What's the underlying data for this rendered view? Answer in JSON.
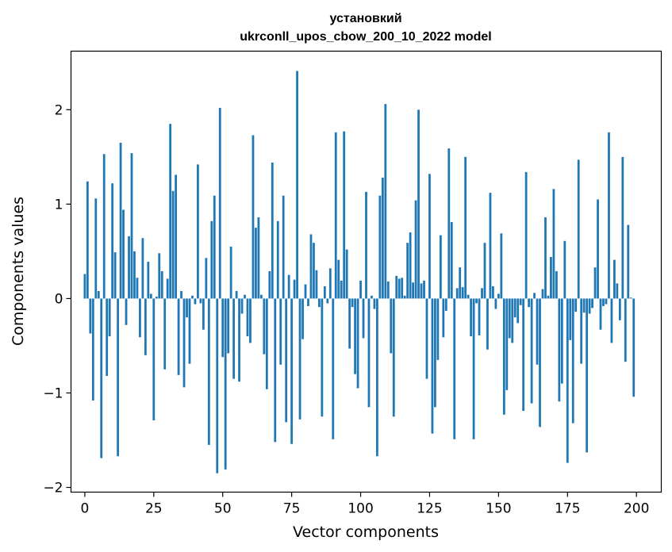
{
  "chart_data": {
    "type": "bar",
    "title": "установкий\nukrconll_upos_cbow_200_10_2022 model",
    "title_lines": [
      "установкий",
      "ukrconll_upos_cbow_200_10_2022 model"
    ],
    "xlabel": "Vector components",
    "ylabel": "Components values",
    "xlim": [
      -5,
      209
    ],
    "ylim": [
      -2.05,
      2.62
    ],
    "xticks": [
      0,
      25,
      50,
      75,
      100,
      125,
      150,
      175,
      200
    ],
    "xtick_labels": [
      "0",
      "25",
      "50",
      "75",
      "100",
      "125",
      "150",
      "175",
      "200"
    ],
    "yticks": [
      -2,
      -1,
      0,
      1,
      2
    ],
    "ytick_labels": [
      "−2",
      "−1",
      "0",
      "1",
      "2"
    ],
    "grid": false,
    "bar_color": "#1f77b4",
    "x": [
      0,
      1,
      2,
      3,
      4,
      5,
      6,
      7,
      8,
      9,
      10,
      11,
      12,
      13,
      14,
      15,
      16,
      17,
      18,
      19,
      20,
      21,
      22,
      23,
      24,
      25,
      26,
      27,
      28,
      29,
      30,
      31,
      32,
      33,
      34,
      35,
      36,
      37,
      38,
      39,
      40,
      41,
      42,
      43,
      44,
      45,
      46,
      47,
      48,
      49,
      50,
      51,
      52,
      53,
      54,
      55,
      56,
      57,
      58,
      59,
      60,
      61,
      62,
      63,
      64,
      65,
      66,
      67,
      68,
      69,
      70,
      71,
      72,
      73,
      74,
      75,
      76,
      77,
      78,
      79,
      80,
      81,
      82,
      83,
      84,
      85,
      86,
      87,
      88,
      89,
      90,
      91,
      92,
      93,
      94,
      95,
      96,
      97,
      98,
      99,
      100,
      101,
      102,
      103,
      104,
      105,
      106,
      107,
      108,
      109,
      110,
      111,
      112,
      113,
      114,
      115,
      116,
      117,
      118,
      119,
      120,
      121,
      122,
      123,
      124,
      125,
      126,
      127,
      128,
      129,
      130,
      131,
      132,
      133,
      134,
      135,
      136,
      137,
      138,
      139,
      140,
      141,
      142,
      143,
      144,
      145,
      146,
      147,
      148,
      149,
      150,
      151,
      152,
      153,
      154,
      155,
      156,
      157,
      158,
      159,
      160,
      161,
      162,
      163,
      164,
      165,
      166,
      167,
      168,
      169,
      170,
      171,
      172,
      173,
      174,
      175,
      176,
      177,
      178,
      179,
      180,
      181,
      182,
      183,
      184,
      185,
      186,
      187,
      188,
      189,
      190,
      191,
      192,
      193,
      194,
      195,
      196,
      197,
      198,
      199
    ],
    "values": [
      0.26,
      1.24,
      -0.37,
      -1.08,
      1.06,
      0.08,
      -1.69,
      1.53,
      -0.82,
      -0.4,
      1.22,
      0.49,
      -1.67,
      1.65,
      0.94,
      -0.28,
      0.66,
      1.54,
      0.5,
      0.22,
      -0.41,
      0.64,
      -0.6,
      0.39,
      0.05,
      -1.29,
      0.02,
      0.48,
      0.29,
      -0.75,
      0.21,
      1.85,
      1.14,
      1.31,
      -0.81,
      0.08,
      -0.94,
      -0.2,
      -0.69,
      0.03,
      -0.06,
      1.42,
      -0.05,
      -0.33,
      0.43,
      -1.55,
      0.82,
      1.09,
      -1.85,
      2.02,
      -0.62,
      -1.81,
      -0.58,
      0.55,
      -0.85,
      0.08,
      -0.88,
      -0.16,
      0.04,
      -0.4,
      -0.47,
      1.73,
      0.75,
      0.86,
      0.04,
      -0.59,
      -0.96,
      0.29,
      1.44,
      -1.52,
      0.82,
      -0.7,
      1.09,
      -1.31,
      0.25,
      -1.54,
      0.2,
      2.41,
      -1.28,
      -0.43,
      0.15,
      -0.08,
      0.68,
      0.59,
      0.3,
      -0.09,
      -1.25,
      0.13,
      -0.05,
      0.32,
      -1.49,
      1.76,
      0.41,
      0.19,
      1.77,
      0.52,
      -0.53,
      -0.09,
      -0.8,
      -0.95,
      0.19,
      -0.42,
      1.13,
      -1.15,
      0.03,
      -0.11,
      -1.67,
      1.09,
      1.28,
      2.06,
      0.18,
      -0.58,
      -1.25,
      0.24,
      0.21,
      0.22,
      0.03,
      0.59,
      0.7,
      0.17,
      1.04,
      2.0,
      0.16,
      0.19,
      -0.85,
      1.32,
      -1.43,
      -1.15,
      -0.65,
      0.67,
      -0.41,
      -0.13,
      1.59,
      0.81,
      -1.49,
      0.11,
      0.33,
      0.12,
      1.5,
      0.04,
      -0.4,
      -1.49,
      -0.05,
      -0.39,
      0.11,
      0.59,
      -0.54,
      1.12,
      0.13,
      -0.11,
      0.05,
      0.69,
      -1.23,
      -0.97,
      -0.42,
      -0.47,
      -0.2,
      -0.26,
      -0.07,
      -1.19,
      1.34,
      -0.09,
      -1.11,
      0.06,
      -0.7,
      -1.36,
      0.1,
      0.86,
      0.03,
      0.44,
      1.16,
      0.29,
      -1.09,
      -0.9,
      0.61,
      -1.74,
      -0.44,
      -1.32,
      -0.14,
      1.47,
      -0.69,
      -0.15,
      -1.63,
      -0.16,
      -0.1,
      0.33,
      1.05,
      -0.33,
      -0.08,
      -0.06,
      1.76,
      -0.47,
      0.41,
      0.16,
      -0.23,
      1.5,
      -0.67,
      0.78,
      0.01,
      -1.04
    ]
  }
}
